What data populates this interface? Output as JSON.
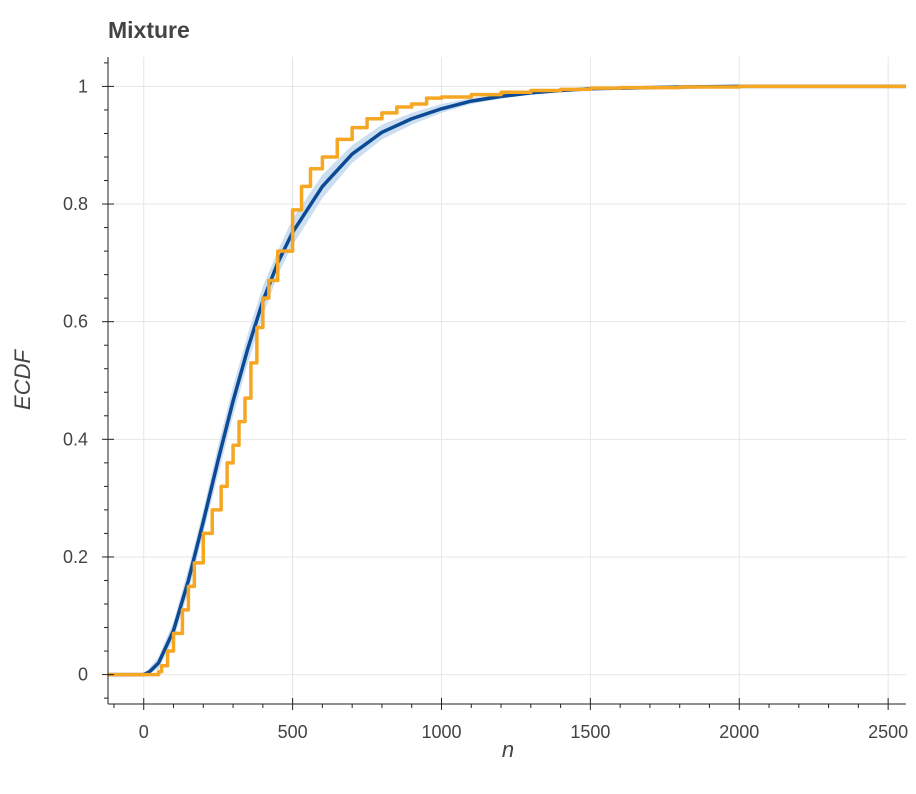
{
  "chart_data": {
    "type": "line",
    "title": "Mixture",
    "xlabel": "n",
    "ylabel": "ECDF",
    "xlim": [
      -120,
      2560
    ],
    "ylim": [
      -0.05,
      1.05
    ],
    "x_ticks": [
      0,
      500,
      1000,
      1500,
      2000,
      2500
    ],
    "x_tick_labels": [
      "0",
      "500",
      "1000",
      "1500",
      "2000",
      "2500"
    ],
    "y_ticks": [
      0,
      0.2,
      0.4,
      0.6,
      0.8,
      1
    ],
    "y_tick_labels": [
      "0",
      "0.2",
      "0.4",
      "0.6",
      "0.8",
      "1"
    ],
    "grid": true,
    "legend": "none",
    "colors": {
      "model_line": "#0d4a96",
      "credible_band": "#c6dbef",
      "data_ecdf": "#f5a623",
      "grid": "#e6e6e6",
      "axis": "#222222",
      "text": "#444444"
    },
    "series": [
      {
        "x": [
          -120,
          0,
          20,
          50,
          100,
          150,
          200,
          250,
          300,
          350,
          400,
          450,
          500,
          600,
          700,
          800,
          900,
          1000,
          1100,
          1200,
          1300,
          1400,
          1500,
          1600,
          1800,
          2000,
          2560
        ],
        "lower": [
          0,
          0,
          0.002,
          0.01,
          0.06,
          0.14,
          0.24,
          0.34,
          0.44,
          0.53,
          0.61,
          0.68,
          0.73,
          0.81,
          0.87,
          0.91,
          0.935,
          0.955,
          0.97,
          0.979,
          0.986,
          0.991,
          0.994,
          0.996,
          0.998,
          0.999,
          1.0
        ],
        "upper": [
          0,
          0,
          0.012,
          0.03,
          0.09,
          0.18,
          0.28,
          0.39,
          0.49,
          0.58,
          0.66,
          0.72,
          0.775,
          0.85,
          0.9,
          0.935,
          0.955,
          0.97,
          0.98,
          0.987,
          0.992,
          0.995,
          0.997,
          0.998,
          0.999,
          1.0,
          1.0
        ]
      },
      {
        "x": [
          -120,
          0,
          20,
          50,
          100,
          150,
          200,
          250,
          300,
          350,
          400,
          450,
          500,
          600,
          700,
          800,
          900,
          1000,
          1100,
          1200,
          1300,
          1400,
          1500,
          1600,
          1800,
          2000,
          2560
        ],
        "y": [
          0,
          0,
          0.005,
          0.02,
          0.075,
          0.16,
          0.26,
          0.365,
          0.465,
          0.555,
          0.635,
          0.7,
          0.752,
          0.83,
          0.885,
          0.922,
          0.945,
          0.962,
          0.975,
          0.983,
          0.989,
          0.993,
          0.996,
          0.997,
          0.999,
          1.0,
          1.0
        ]
      },
      {
        "x": [
          -120,
          30,
          50,
          60,
          80,
          100,
          130,
          150,
          170,
          200,
          230,
          260,
          280,
          300,
          320,
          340,
          360,
          380,
          400,
          420,
          450,
          500,
          530,
          560,
          600,
          650,
          700,
          750,
          800,
          850,
          900,
          950,
          1000,
          1100,
          1200,
          1300,
          1400,
          1500,
          1600,
          1800,
          2000,
          2560
        ],
        "y": [
          0,
          0,
          0.005,
          0.015,
          0.04,
          0.07,
          0.11,
          0.15,
          0.19,
          0.24,
          0.28,
          0.32,
          0.36,
          0.39,
          0.43,
          0.47,
          0.53,
          0.59,
          0.64,
          0.67,
          0.72,
          0.79,
          0.83,
          0.86,
          0.88,
          0.91,
          0.93,
          0.945,
          0.955,
          0.965,
          0.97,
          0.98,
          0.982,
          0.986,
          0.99,
          0.993,
          0.995,
          0.997,
          0.998,
          0.999,
          1.0,
          1.0
        ]
      }
    ]
  }
}
